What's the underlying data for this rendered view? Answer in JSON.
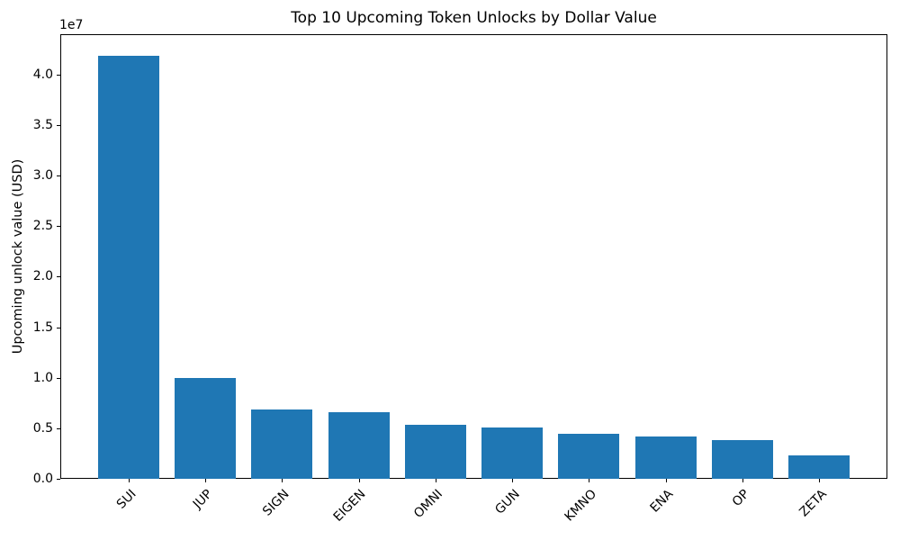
{
  "chart_data": {
    "type": "bar",
    "title": "Top 10 Upcoming Token Unlocks by Dollar Value",
    "xlabel": "",
    "ylabel": "Upcoming unlock value (USD)",
    "y_offset_text": "1e7",
    "categories": [
      "SUI",
      "JUP",
      "SIGN",
      "EIGEN",
      "OMNI",
      "GUN",
      "KMNO",
      "ENA",
      "OP",
      "ZETA"
    ],
    "values": [
      41900000,
      10000000,
      6850000,
      6550000,
      5300000,
      5100000,
      4450000,
      4150000,
      3800000,
      2300000
    ],
    "ylim": [
      0,
      44000000
    ],
    "yticks": [
      0.0,
      0.5,
      1.0,
      1.5,
      2.0,
      2.5,
      3.0,
      3.5,
      4.0
    ],
    "y_scale_factor": 10000000,
    "bar_color": "#1f77b4",
    "x_tick_rotation": 45,
    "grid": false,
    "legend": null,
    "spine_color": "#000000"
  }
}
